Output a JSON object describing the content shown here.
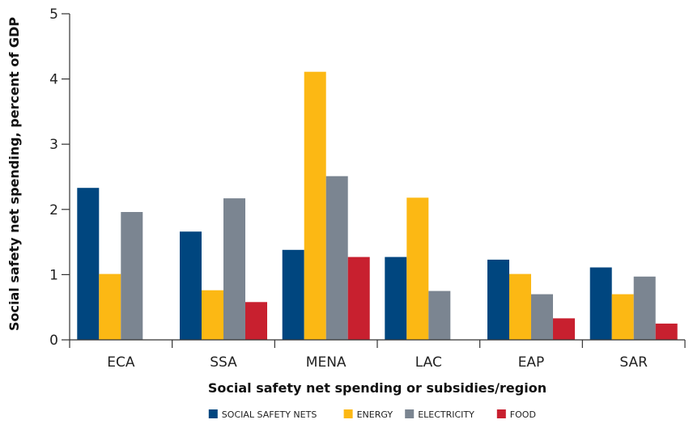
{
  "chart_data": {
    "type": "bar",
    "title": "",
    "xlabel": "Social safety net spending or subsidies/region",
    "ylabel": "Social safety net spending, percent of GDP",
    "ylim": [
      0,
      5
    ],
    "yticks": [
      "0",
      "1",
      "2",
      "3",
      "4",
      "5"
    ],
    "categories": [
      "ECA",
      "SSA",
      "MENA",
      "LAC",
      "EAP",
      "SAR"
    ],
    "grid": false,
    "legend_position": "bottom",
    "series": [
      {
        "name": "SOCIAL SAFETY NETS",
        "color": "#00467f",
        "values": [
          2.33,
          1.66,
          1.38,
          1.27,
          1.23,
          1.11
        ]
      },
      {
        "name": "ENERGY",
        "color": "#fcb814",
        "values": [
          1.01,
          0.76,
          4.11,
          2.18,
          1.01,
          0.7
        ]
      },
      {
        "name": "ELECTRICITY",
        "color": "#7b8591",
        "values": [
          1.96,
          2.17,
          2.51,
          0.75,
          0.7,
          0.97
        ]
      },
      {
        "name": "FOOD",
        "color": "#c8202f",
        "values": [
          null,
          0.58,
          1.27,
          null,
          0.33,
          0.25
        ]
      }
    ]
  }
}
